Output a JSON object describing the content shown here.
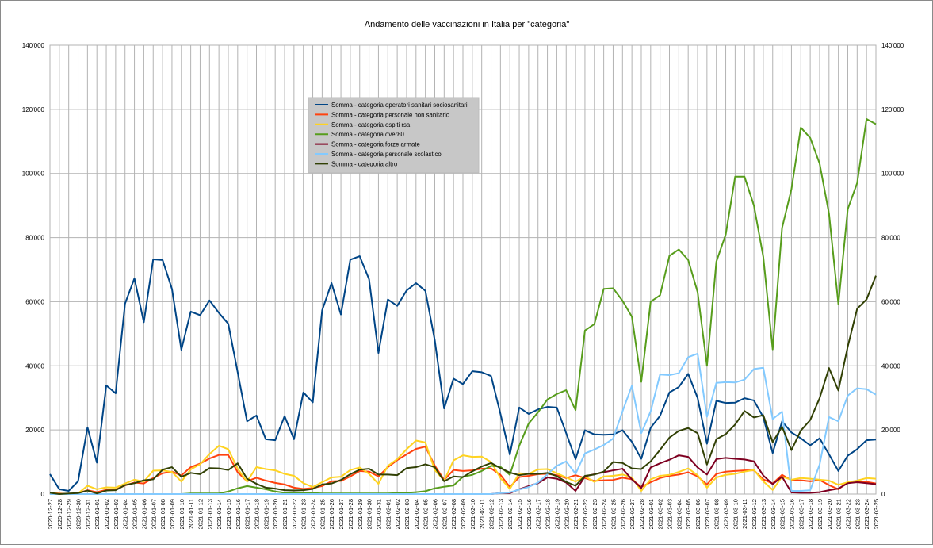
{
  "chart_data": {
    "type": "line",
    "title": "Andamento delle vaccinazioni in Italia per \"categoria\"",
    "xlabel": "",
    "ylabel": "",
    "ylim": [
      0,
      140000
    ],
    "yticks": [
      "0",
      "20'000",
      "40'000",
      "60'000",
      "80'000",
      "100'000",
      "120'000",
      "140'000"
    ],
    "grid": true,
    "legend_position": "top-center",
    "x": [
      "2020-12-27",
      "2020-12-28",
      "2020-12-29",
      "2020-12-30",
      "2020-12-31",
      "2021-01-01",
      "2021-01-02",
      "2021-01-03",
      "2021-01-04",
      "2021-01-05",
      "2021-01-06",
      "2021-01-07",
      "2021-01-08",
      "2021-01-09",
      "2021-01-10",
      "2021-01-11",
      "2021-01-12",
      "2021-01-13",
      "2021-01-14",
      "2021-01-15",
      "2021-01-16",
      "2021-01-17",
      "2021-01-18",
      "2021-01-19",
      "2021-01-20",
      "2021-01-21",
      "2021-01-22",
      "2021-01-23",
      "2021-01-24",
      "2021-01-25",
      "2021-01-26",
      "2021-01-27",
      "2021-01-28",
      "2021-01-29",
      "2021-01-30",
      "2021-01-31",
      "2021-02-01",
      "2021-02-02",
      "2021-02-03",
      "2021-02-04",
      "2021-02-05",
      "2021-02-06",
      "2021-02-07",
      "2021-02-08",
      "2021-02-09",
      "2021-02-10",
      "2021-02-11",
      "2021-02-12",
      "2021-02-13",
      "2021-02-14",
      "2021-02-15",
      "2021-02-16",
      "2021-02-17",
      "2021-02-18",
      "2021-02-19",
      "2021-02-20",
      "2021-02-21",
      "2021-02-22",
      "2021-02-23",
      "2021-02-24",
      "2021-02-25",
      "2021-02-26",
      "2021-02-27",
      "2021-02-28",
      "2021-03-01",
      "2021-03-02",
      "2021-03-03",
      "2021-03-04",
      "2021-03-05",
      "2021-03-06",
      "2021-03-07",
      "2021-03-08",
      "2021-03-09",
      "2021-03-10",
      "2021-03-11",
      "2021-03-12",
      "2021-03-13",
      "2021-03-14",
      "2021-03-15",
      "2021-03-16",
      "2021-03-17",
      "2021-03-18",
      "2021-03-19",
      "2021-03-20",
      "2021-03-21",
      "2021-03-22",
      "2021-03-23",
      "2021-03-24",
      "2021-03-25"
    ],
    "series": [
      {
        "name": "Somma - categoria operatori sanitari sociosanitari",
        "color": "#004586",
        "values": [
          6200,
          1500,
          1000,
          4000,
          20800,
          9800,
          33900,
          31400,
          59400,
          67300,
          53600,
          73200,
          73000,
          64000,
          45000,
          56900,
          55800,
          60400,
          56500,
          53100,
          38000,
          22700,
          24500,
          17100,
          16800,
          24300,
          17100,
          31700,
          28600,
          57300,
          65800,
          56000,
          73100,
          74200,
          67000,
          44000,
          60700,
          58700,
          63500,
          65800,
          63400,
          48000,
          26700,
          36000,
          34300,
          38300,
          38000,
          36800,
          25000,
          12300,
          27000,
          25000,
          26400,
          27200,
          27000,
          19000,
          10900,
          19900,
          18600,
          18500,
          18600,
          19900,
          16300,
          11000,
          20700,
          24400,
          31700,
          33400,
          37500,
          30000,
          15700,
          29100,
          28400,
          28500,
          29900,
          29200,
          24000,
          12800,
          22700,
          19200,
          17400,
          15200,
          17400,
          12400,
          7200,
          12000,
          14000,
          16800,
          17000
        ]
      },
      {
        "name": "Somma - categoria personale non sanitario",
        "color": "#ff420e",
        "values": [
          300,
          200,
          0,
          300,
          1200,
          600,
          1300,
          1400,
          2700,
          3600,
          3300,
          5000,
          6500,
          7000,
          5800,
          8400,
          9500,
          11100,
          12200,
          12200,
          6800,
          4000,
          5100,
          4200,
          3500,
          3000,
          2000,
          1600,
          1900,
          2500,
          4000,
          4100,
          5500,
          7200,
          7000,
          5500,
          8400,
          10600,
          12400,
          14100,
          14800,
          8900,
          4400,
          7500,
          7200,
          7400,
          7900,
          8000,
          6000,
          2200,
          5300,
          5700,
          6200,
          6300,
          5900,
          5000,
          5900,
          5000,
          4100,
          4300,
          4400,
          5100,
          4600,
          2200,
          3700,
          5000,
          5700,
          6100,
          6800,
          5500,
          3000,
          6300,
          7000,
          7200,
          7400,
          7400,
          4600,
          3300,
          6000,
          4300,
          4300,
          4000,
          4400,
          2800,
          1500,
          3700,
          3800,
          3800,
          3300
        ]
      },
      {
        "name": "Somma - categoria ospiti rsa",
        "color": "#ffd320",
        "values": [
          300,
          100,
          0,
          200,
          2600,
          1500,
          2100,
          2000,
          3300,
          4500,
          3900,
          7300,
          7400,
          6900,
          3900,
          7700,
          9300,
          12500,
          15100,
          14000,
          7900,
          3900,
          8400,
          7800,
          7400,
          6300,
          5700,
          3400,
          2200,
          3700,
          5200,
          5400,
          7500,
          8300,
          6300,
          3200,
          8800,
          10900,
          14000,
          16700,
          16100,
          7500,
          4200,
          10500,
          12100,
          11600,
          11700,
          10000,
          5000,
          1600,
          6500,
          6300,
          7700,
          7800,
          6500,
          5200,
          3900,
          5500,
          3800,
          5500,
          5700,
          6100,
          5200,
          1000,
          4600,
          5700,
          6000,
          6900,
          8000,
          5900,
          2000,
          5200,
          6000,
          6300,
          7000,
          7500,
          4000,
          1300,
          5400,
          4500,
          5000,
          4800,
          4500,
          4200,
          2900,
          3700,
          4200,
          5000,
          4800
        ]
      },
      {
        "name": "Somma - categoria over80",
        "color": "#579d1c",
        "values": [
          0,
          0,
          0,
          0,
          0,
          0,
          0,
          0,
          0,
          0,
          0,
          0,
          0,
          0,
          0,
          200,
          200,
          200,
          200,
          800,
          1800,
          2500,
          2000,
          1500,
          800,
          400,
          300,
          300,
          300,
          200,
          200,
          200,
          200,
          200,
          200,
          200,
          200,
          300,
          400,
          600,
          900,
          1800,
          2300,
          2700,
          5400,
          6000,
          7200,
          8800,
          8500,
          6000,
          15100,
          22000,
          25500,
          29500,
          31200,
          32400,
          26200,
          51000,
          53000,
          64000,
          64200,
          60300,
          55300,
          35000,
          60000,
          62000,
          74300,
          76300,
          73000,
          63000,
          40000,
          72500,
          81000,
          99000,
          99000,
          90000,
          74000,
          45100,
          83000,
          95100,
          114300,
          111100,
          103100,
          87500,
          59200,
          88900,
          97000,
          117000,
          115400
        ]
      },
      {
        "name": "Somma - categoria forze armate",
        "color": "#7e0021",
        "values": [
          0,
          0,
          0,
          0,
          0,
          0,
          0,
          0,
          0,
          0,
          0,
          0,
          0,
          0,
          0,
          0,
          0,
          0,
          0,
          0,
          0,
          0,
          0,
          0,
          0,
          0,
          0,
          0,
          0,
          0,
          0,
          0,
          0,
          0,
          0,
          0,
          0,
          0,
          0,
          0,
          0,
          0,
          0,
          0,
          0,
          0,
          0,
          0,
          300,
          300,
          1500,
          2500,
          3400,
          5200,
          4800,
          3600,
          1000,
          5500,
          6200,
          6800,
          7400,
          7900,
          4600,
          1900,
          8300,
          9600,
          10700,
          12100,
          11600,
          8300,
          6100,
          10900,
          11300,
          11000,
          10800,
          10200,
          5800,
          3100,
          5400,
          500,
          400,
          400,
          600,
          1200,
          1700,
          3400,
          3700,
          3400,
          3100
        ]
      },
      {
        "name": "Somma - categoria personale scolastico",
        "color": "#83caff",
        "values": [
          0,
          0,
          0,
          0,
          0,
          0,
          0,
          0,
          0,
          0,
          0,
          0,
          0,
          0,
          0,
          0,
          0,
          0,
          0,
          0,
          0,
          0,
          0,
          0,
          0,
          0,
          0,
          0,
          0,
          0,
          0,
          0,
          0,
          0,
          0,
          0,
          0,
          0,
          0,
          0,
          0,
          0,
          0,
          0,
          0,
          0,
          0,
          0,
          300,
          500,
          1400,
          2200,
          3600,
          6200,
          8800,
          10200,
          6300,
          12700,
          13900,
          15300,
          17300,
          25800,
          33800,
          19000,
          25800,
          37300,
          37100,
          37700,
          42700,
          43800,
          24100,
          34700,
          34900,
          34800,
          35700,
          39000,
          39400,
          23400,
          25700,
          1000,
          1000,
          1200,
          9200,
          24000,
          22700,
          30700,
          33000,
          32700,
          31000
        ]
      },
      {
        "name": "Somma - categoria altro",
        "color": "#314004",
        "values": [
          400,
          0,
          200,
          300,
          1100,
          200,
          1100,
          1200,
          2800,
          3400,
          4300,
          4600,
          7600,
          8400,
          5400,
          6600,
          6200,
          8100,
          8000,
          7500,
          9600,
          4800,
          3200,
          2000,
          1700,
          1200,
          1100,
          1200,
          1600,
          3000,
          3300,
          4400,
          6200,
          7600,
          7900,
          6100,
          6100,
          5900,
          8100,
          8400,
          9300,
          8400,
          4000,
          5500,
          5300,
          7100,
          8600,
          9700,
          8100,
          6700,
          5900,
          6300,
          6300,
          6600,
          5600,
          3800,
          2600,
          5700,
          6100,
          7000,
          10000,
          9700,
          8000,
          7800,
          10200,
          13800,
          17600,
          19700,
          20600,
          19000,
          9200,
          17100,
          18700,
          21700,
          25900,
          23900,
          24600,
          16200,
          21000,
          13700,
          19800,
          23100,
          29900,
          39300,
          32300,
          46000,
          57800,
          60700,
          68100
        ]
      }
    ]
  }
}
